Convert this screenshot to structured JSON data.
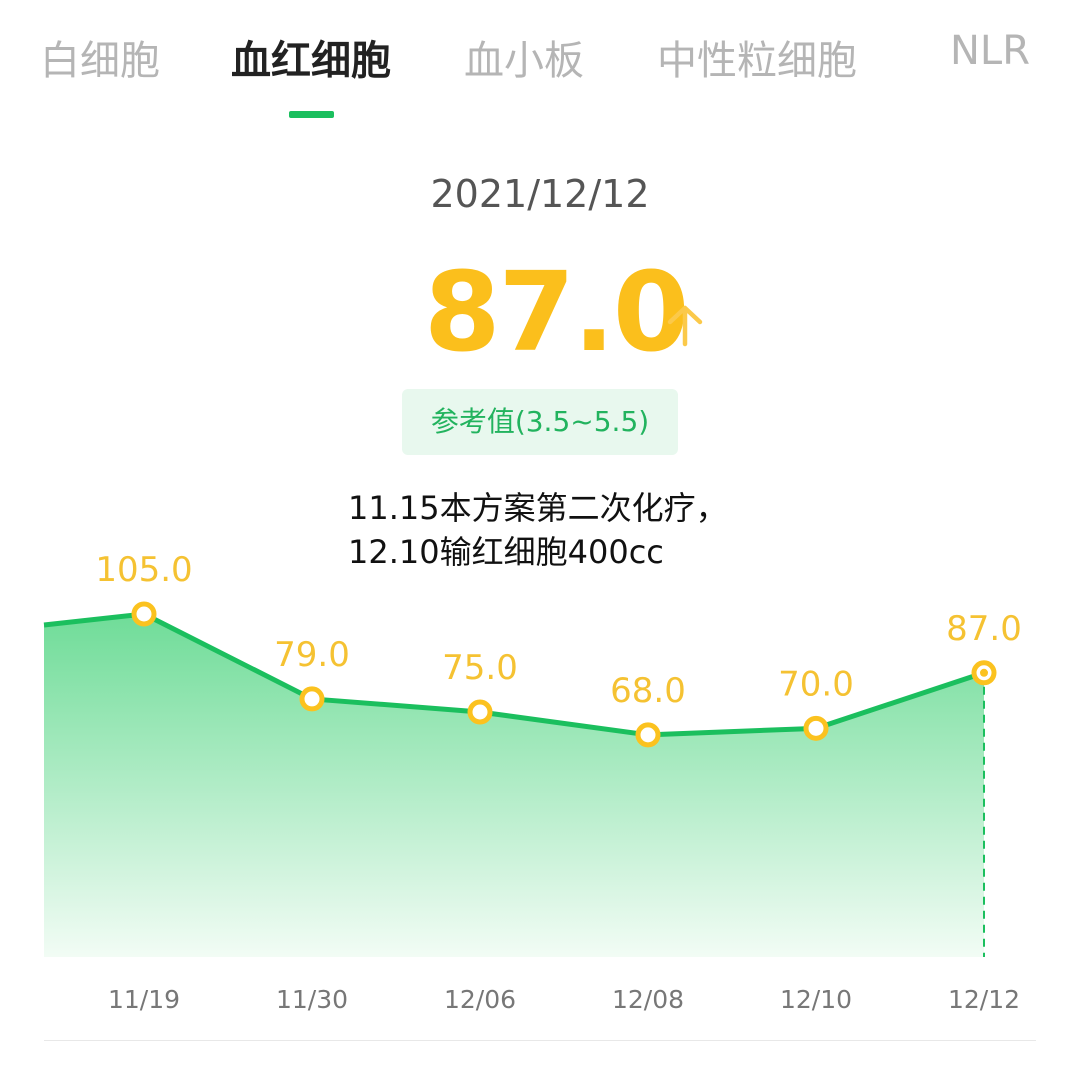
{
  "tabs": [
    {
      "label": "白细胞",
      "active": false
    },
    {
      "label": "血红细胞",
      "active": true
    },
    {
      "label": "血小板",
      "active": false
    },
    {
      "label": "中性粒细胞",
      "active": false
    },
    {
      "label": "NLR",
      "active": false
    }
  ],
  "selected": {
    "date": "2021/12/12",
    "value": "87.0",
    "trend_icon": "arrow-up-icon",
    "reference": "参考值(3.5~5.5)"
  },
  "note": "11.15本方案第二次化疗，\n12.10输红细胞400cc",
  "colors": {
    "accent": "#1bbf5e",
    "value": "#fbbf1c",
    "fill_top": "#6fdc98",
    "fill_bottom": "#f2fcf5"
  },
  "chart_data": {
    "type": "area",
    "categories": [
      "11/19",
      "11/30",
      "12/06",
      "12/08",
      "12/10",
      "12/12"
    ],
    "values": [
      105.0,
      79.0,
      75.0,
      68.0,
      70.0,
      87.0
    ],
    "data_labels": [
      "105.0",
      "79.0",
      "75.0",
      "68.0",
      "70.0",
      "87.0"
    ],
    "selected_index": 5,
    "ylim": [
      0,
      120
    ],
    "grid": false
  }
}
